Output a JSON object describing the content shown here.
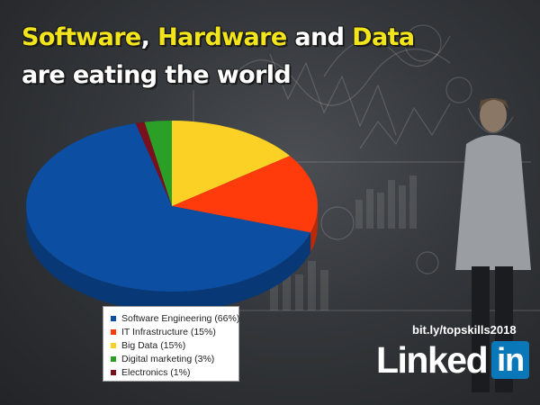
{
  "headline": {
    "line1": [
      "Software",
      ", ",
      "Hardware",
      " and ",
      "Data"
    ],
    "line2": "are eating the world"
  },
  "chart_data": {
    "type": "pie",
    "style": "3d",
    "slices": [
      {
        "label": "Software Engineering (66%)",
        "value": 66,
        "color": "#0b4ea2"
      },
      {
        "label": "IT Infrastructure (15%)",
        "value": 15,
        "color": "#ff3a0b"
      },
      {
        "label": "Big Data (15%)",
        "value": 15,
        "color": "#fcd125"
      },
      {
        "label": "Digital marketing (3%)",
        "value": 3,
        "color": "#2aa126"
      },
      {
        "label": "Electronics (1%)",
        "value": 1,
        "color": "#7a0f1e"
      }
    ],
    "legend_position": "bottom-left"
  },
  "short_link": "bit.ly/topskills2018",
  "brand": {
    "word": "Linked",
    "box": "in",
    "color": "#0a78b8"
  }
}
